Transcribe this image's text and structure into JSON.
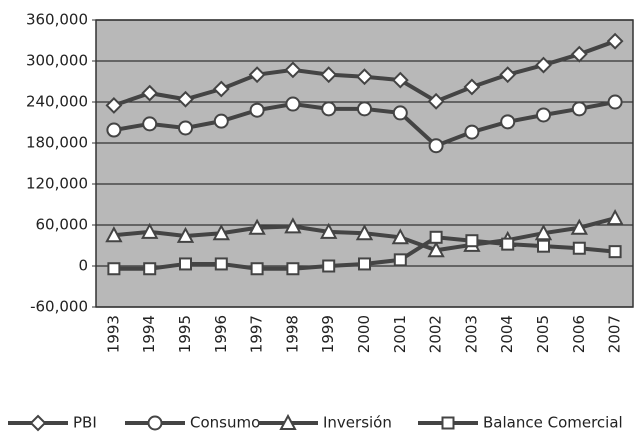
{
  "chart_data": {
    "type": "line",
    "categories": [
      "1993",
      "1994",
      "1995",
      "1996",
      "1997",
      "1998",
      "1999",
      "2000",
      "2001",
      "2002",
      "2003",
      "2004",
      "2005",
      "2006",
      "2007"
    ],
    "series": [
      {
        "name": "PBI",
        "color": "#444444",
        "marker": "diamond",
        "values": [
          235000,
          253000,
          244000,
          259000,
          280000,
          287000,
          280000,
          277000,
          272000,
          241000,
          262000,
          280000,
          294000,
          310000,
          329000
        ]
      },
      {
        "name": "Consumo",
        "color": "#444444",
        "marker": "circle",
        "values": [
          199000,
          208000,
          202000,
          212000,
          228000,
          237000,
          230000,
          230000,
          224000,
          176000,
          196000,
          211000,
          221000,
          230000,
          240000
        ]
      },
      {
        "name": "Inversión",
        "color": "#444444",
        "marker": "triangle",
        "values": [
          45000,
          50000,
          44000,
          48000,
          56000,
          58000,
          50000,
          48000,
          42000,
          23000,
          31000,
          38000,
          48000,
          56000,
          70000
        ]
      },
      {
        "name": "Balance Comercial",
        "color": "#444444",
        "marker": "square",
        "values": [
          -4000,
          -4000,
          3000,
          3000,
          -4000,
          -4000,
          0,
          3000,
          9000,
          42000,
          37000,
          32000,
          29000,
          26000,
          21000
        ]
      }
    ],
    "ylim": [
      -60000,
      360000
    ],
    "yticks": [
      {
        "value": -60000,
        "label": "-60,000"
      },
      0,
      {
        "value": 60000,
        "label": "60,000"
      },
      {
        "value": 120000,
        "label": "120,000"
      },
      {
        "value": 180000,
        "label": "180,000"
      },
      {
        "value": 240000,
        "label": "240,000"
      },
      {
        "value": 300000,
        "label": "300,000"
      },
      {
        "value": 360000,
        "label": "360,000"
      }
    ],
    "grid": true,
    "legend": "bottom"
  }
}
